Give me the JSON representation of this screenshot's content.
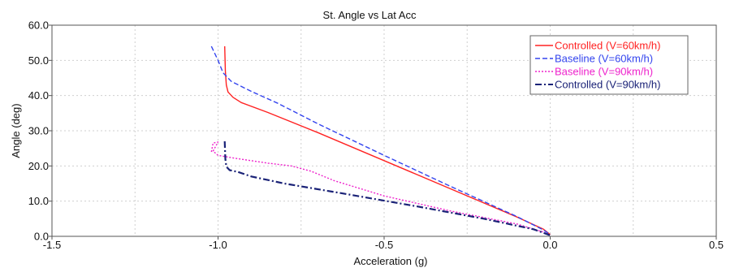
{
  "chart_data": {
    "type": "line",
    "title": "St. Angle vs Lat Acc",
    "xlabel": "Acceleration (g)",
    "ylabel": "Angle (deg)",
    "xlim": [
      -1.5,
      0.5
    ],
    "ylim": [
      0,
      60
    ],
    "x_ticks": [
      -1.5,
      -1.0,
      -0.5,
      0.0,
      0.5
    ],
    "x_tick_labels": [
      "-1.5",
      "-1.0",
      "-0.5",
      "0.0",
      "0.5"
    ],
    "y_ticks": [
      0,
      10,
      20,
      30,
      40,
      50,
      60
    ],
    "y_tick_labels": [
      "0.0",
      "10.0",
      "20.0",
      "30.0",
      "40.0",
      "50.0",
      "60.0"
    ],
    "x_minor_grid": [
      -1.25,
      -0.75,
      -0.25,
      0.25
    ],
    "grid": true,
    "legend_position": "top-right",
    "series": [
      {
        "name": "Controlled (V=60km/h)",
        "color": "#ff2222",
        "dash": "solid",
        "points": [
          [
            -0.98,
            54
          ],
          [
            -0.978,
            47
          ],
          [
            -0.975,
            43
          ],
          [
            -0.97,
            41
          ],
          [
            -0.955,
            39.5
          ],
          [
            -0.93,
            38
          ],
          [
            -0.85,
            35.2
          ],
          [
            -0.7,
            29.5
          ],
          [
            -0.5,
            21.5
          ],
          [
            -0.3,
            13.5
          ],
          [
            -0.1,
            5.5
          ],
          [
            -0.02,
            2
          ],
          [
            0.0,
            0.5
          ]
        ]
      },
      {
        "name": "Baseline (V=60km/h)",
        "color": "#3344ee",
        "dash": "dashed",
        "points": [
          [
            -1.02,
            54
          ],
          [
            -1.0,
            50
          ],
          [
            -0.985,
            46.5
          ],
          [
            -0.96,
            44
          ],
          [
            -0.9,
            41.2
          ],
          [
            -0.82,
            37.8
          ],
          [
            -0.7,
            32
          ],
          [
            -0.5,
            23
          ],
          [
            -0.3,
            14.2
          ],
          [
            -0.1,
            5.6
          ],
          [
            -0.02,
            1.8
          ],
          [
            0.0,
            0.5
          ]
        ]
      },
      {
        "name": "Baseline (V=90km/h)",
        "color": "#ee22cc",
        "dash": "dotted",
        "points": [
          [
            -1.02,
            24
          ],
          [
            -1.015,
            26.5
          ],
          [
            -1.0,
            26.8
          ],
          [
            -1.015,
            24.2
          ],
          [
            -1.0,
            23
          ],
          [
            -0.95,
            22.2
          ],
          [
            -0.85,
            20.8
          ],
          [
            -0.78,
            20
          ],
          [
            -0.72,
            18.5
          ],
          [
            -0.65,
            15.8
          ],
          [
            -0.5,
            11.5
          ],
          [
            -0.3,
            7.2
          ],
          [
            -0.1,
            3.5
          ],
          [
            -0.02,
            1.2
          ],
          [
            0.0,
            0.3
          ]
        ]
      },
      {
        "name": "Controlled (V=90km/h)",
        "color": "#1a2277",
        "dash": "dashdot",
        "points": [
          [
            -0.98,
            27
          ],
          [
            -0.978,
            22
          ],
          [
            -0.975,
            19.8
          ],
          [
            -0.965,
            18.8
          ],
          [
            -0.94,
            18.3
          ],
          [
            -0.9,
            17
          ],
          [
            -0.8,
            15
          ],
          [
            -0.6,
            11.8
          ],
          [
            -0.4,
            8.5
          ],
          [
            -0.2,
            5
          ],
          [
            -0.05,
            2
          ],
          [
            0.0,
            0.3
          ]
        ]
      }
    ]
  }
}
